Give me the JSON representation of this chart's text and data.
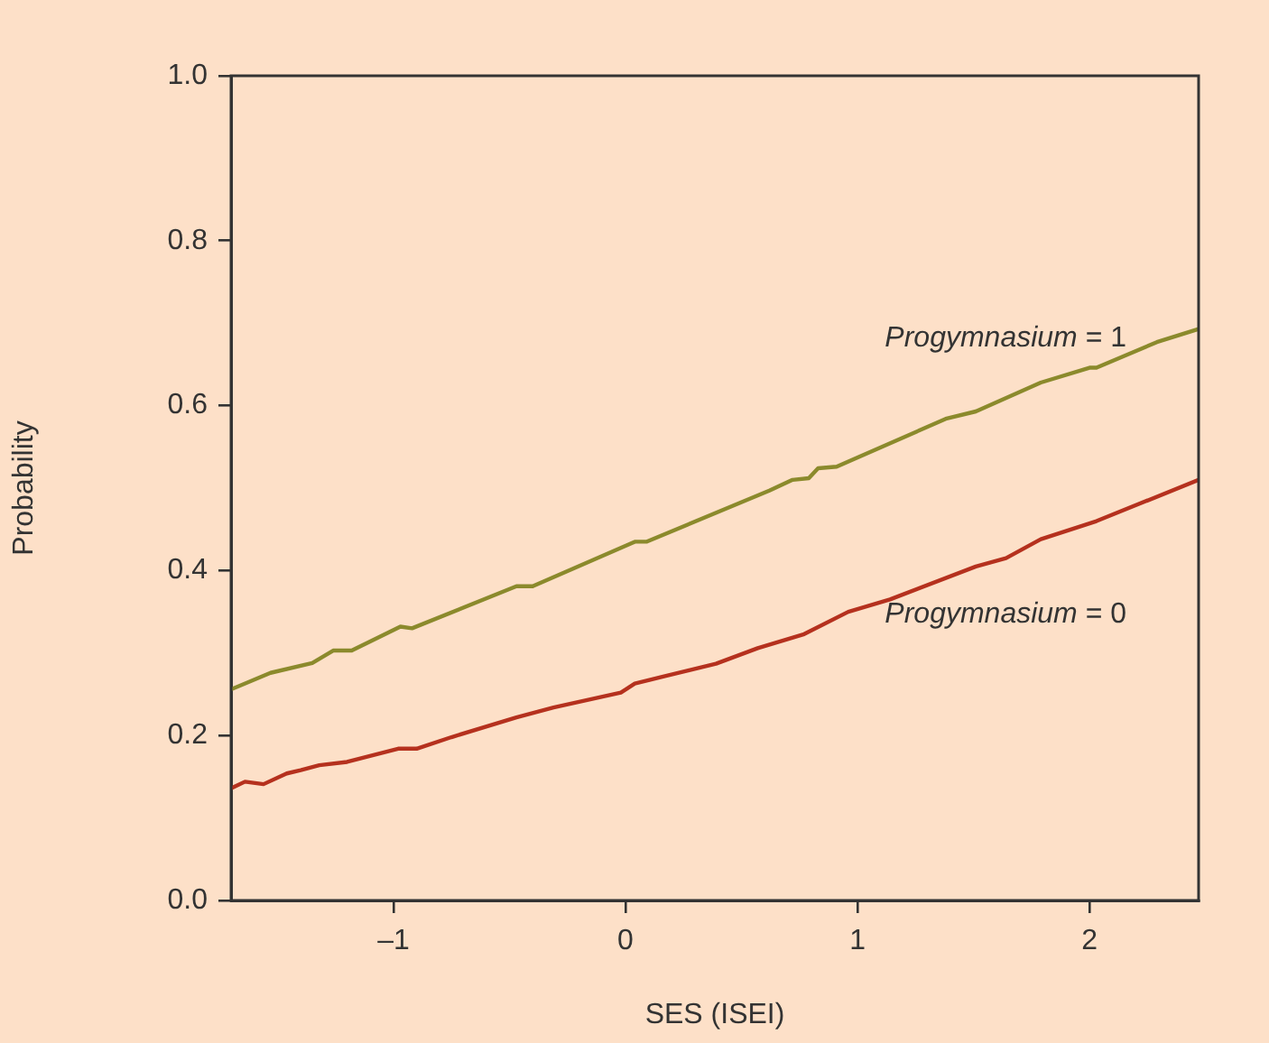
{
  "chart_data": {
    "type": "line",
    "xlabel": "SES (ISEI)",
    "ylabel": "Probability",
    "xlim": [
      -1.7,
      2.47
    ],
    "xticks": [
      {
        "value": -1,
        "label": "–1"
      },
      0,
      1,
      2
    ],
    "ylim": [
      0,
      1
    ],
    "yticks": [
      {
        "value": 0,
        "label": "0.0"
      },
      0.2,
      0.4,
      0.6,
      0.8,
      {
        "value": 1,
        "label": "1.0"
      }
    ],
    "grid": false,
    "legend": false,
    "marker": "none",
    "line_style": "solid",
    "series": [
      {
        "name": "Progymnasium = 1",
        "color": "#8b8a2c",
        "x": [
          -1.7,
          -1.53,
          -1.35,
          -1.26,
          -1.18,
          -0.97,
          -0.92,
          -0.47,
          -0.4,
          0.04,
          0.09,
          0.62,
          0.72,
          0.79,
          0.83,
          0.91,
          1.38,
          1.51,
          1.79,
          2.0,
          2.03,
          2.29,
          2.47
        ],
        "values": [
          0.256,
          0.276,
          0.288,
          0.303,
          0.303,
          0.332,
          0.33,
          0.381,
          0.381,
          0.435,
          0.435,
          0.497,
          0.51,
          0.512,
          0.524,
          0.526,
          0.584,
          0.593,
          0.628,
          0.646,
          0.646,
          0.677,
          0.693
        ]
      },
      {
        "name": "Progymnasium = 0",
        "color": "#b5311e",
        "x": [
          -1.7,
          -1.64,
          -1.56,
          -1.46,
          -1.4,
          -1.32,
          -1.2,
          -0.98,
          -0.9,
          -0.75,
          -0.47,
          -0.31,
          -0.02,
          0.04,
          0.17,
          0.39,
          0.57,
          0.77,
          0.96,
          1.14,
          1.51,
          1.64,
          1.79,
          2.03,
          2.47
        ],
        "values": [
          0.136,
          0.144,
          0.141,
          0.154,
          0.158,
          0.164,
          0.168,
          0.184,
          0.184,
          0.198,
          0.222,
          0.234,
          0.252,
          0.263,
          0.272,
          0.287,
          0.306,
          0.323,
          0.35,
          0.365,
          0.405,
          0.415,
          0.438,
          0.46,
          0.51
        ]
      }
    ]
  }
}
